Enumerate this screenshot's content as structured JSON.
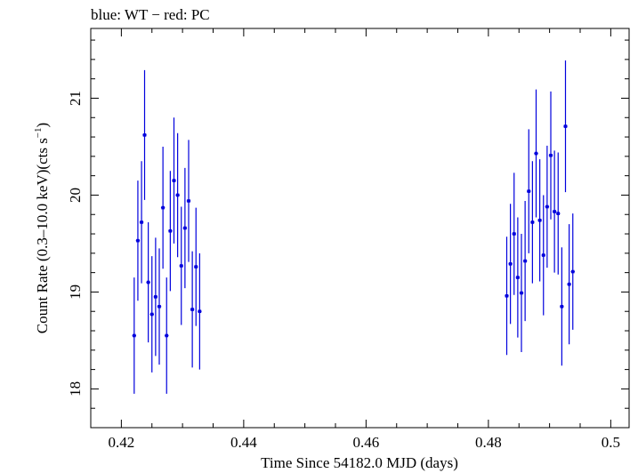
{
  "chart_data": {
    "type": "scatter",
    "title": "blue: WT − red: PC",
    "xlabel": "Time Since 54182.0 MJD (days)",
    "ylabel_main": "Count Rate (0.3–10.0 keV)(cts s",
    "ylabel_exp": "−1",
    "ylabel_close": ")",
    "xlim": [
      0.415,
      0.503
    ],
    "ylim": [
      17.6,
      21.72
    ],
    "xticks": [
      0.42,
      0.44,
      0.46,
      0.48,
      0.5
    ],
    "xtick_labels": [
      "0.42",
      "0.44",
      "0.46",
      "0.48",
      "0.5"
    ],
    "yticks": [
      18,
      19,
      20,
      21
    ],
    "ytick_labels": [
      "18",
      "19",
      "20",
      "21"
    ],
    "colors": {
      "WT": "#0000dd",
      "axes": "#000000"
    },
    "series": [
      {
        "name": "WT",
        "points": [
          {
            "x": 0.4221,
            "y": 18.55,
            "err": 0.6
          },
          {
            "x": 0.4227,
            "y": 19.53,
            "err": 0.62
          },
          {
            "x": 0.4233,
            "y": 19.72,
            "err": 0.63
          },
          {
            "x": 0.4238,
            "y": 20.62,
            "err": 0.67
          },
          {
            "x": 0.4244,
            "y": 19.1,
            "err": 0.62
          },
          {
            "x": 0.425,
            "y": 18.77,
            "err": 0.6
          },
          {
            "x": 0.4256,
            "y": 18.95,
            "err": 0.61
          },
          {
            "x": 0.4262,
            "y": 18.85,
            "err": 0.6
          },
          {
            "x": 0.4268,
            "y": 19.87,
            "err": 0.63
          },
          {
            "x": 0.4274,
            "y": 18.55,
            "err": 0.6
          },
          {
            "x": 0.428,
            "y": 19.63,
            "err": 0.62
          },
          {
            "x": 0.4286,
            "y": 20.15,
            "err": 0.65
          },
          {
            "x": 0.4292,
            "y": 20.0,
            "err": 0.64
          },
          {
            "x": 0.4298,
            "y": 19.27,
            "err": 0.61
          },
          {
            "x": 0.4304,
            "y": 19.66,
            "err": 0.62
          },
          {
            "x": 0.431,
            "y": 19.94,
            "err": 0.63
          },
          {
            "x": 0.4316,
            "y": 18.82,
            "err": 0.6
          },
          {
            "x": 0.4322,
            "y": 19.26,
            "err": 0.61
          },
          {
            "x": 0.4328,
            "y": 18.8,
            "err": 0.6
          },
          {
            "x": 0.483,
            "y": 18.96,
            "err": 0.61
          },
          {
            "x": 0.4836,
            "y": 19.29,
            "err": 0.62
          },
          {
            "x": 0.4842,
            "y": 19.6,
            "err": 0.63
          },
          {
            "x": 0.4848,
            "y": 19.15,
            "err": 0.62
          },
          {
            "x": 0.4854,
            "y": 18.99,
            "err": 0.61
          },
          {
            "x": 0.486,
            "y": 19.32,
            "err": 0.62
          },
          {
            "x": 0.4866,
            "y": 20.04,
            "err": 0.64
          },
          {
            "x": 0.4872,
            "y": 19.72,
            "err": 0.63
          },
          {
            "x": 0.4878,
            "y": 20.43,
            "err": 0.66
          },
          {
            "x": 0.4884,
            "y": 19.74,
            "err": 0.63
          },
          {
            "x": 0.489,
            "y": 19.38,
            "err": 0.62
          },
          {
            "x": 0.4896,
            "y": 19.88,
            "err": 0.63
          },
          {
            "x": 0.4902,
            "y": 20.41,
            "err": 0.66
          },
          {
            "x": 0.4908,
            "y": 19.83,
            "err": 0.63
          },
          {
            "x": 0.4914,
            "y": 19.81,
            "err": 0.63
          },
          {
            "x": 0.492,
            "y": 18.85,
            "err": 0.61
          },
          {
            "x": 0.4926,
            "y": 20.71,
            "err": 0.68
          },
          {
            "x": 0.4932,
            "y": 19.08,
            "err": 0.62
          },
          {
            "x": 0.4938,
            "y": 19.21,
            "err": 0.6
          }
        ]
      }
    ],
    "grid": false,
    "legend": "none"
  }
}
